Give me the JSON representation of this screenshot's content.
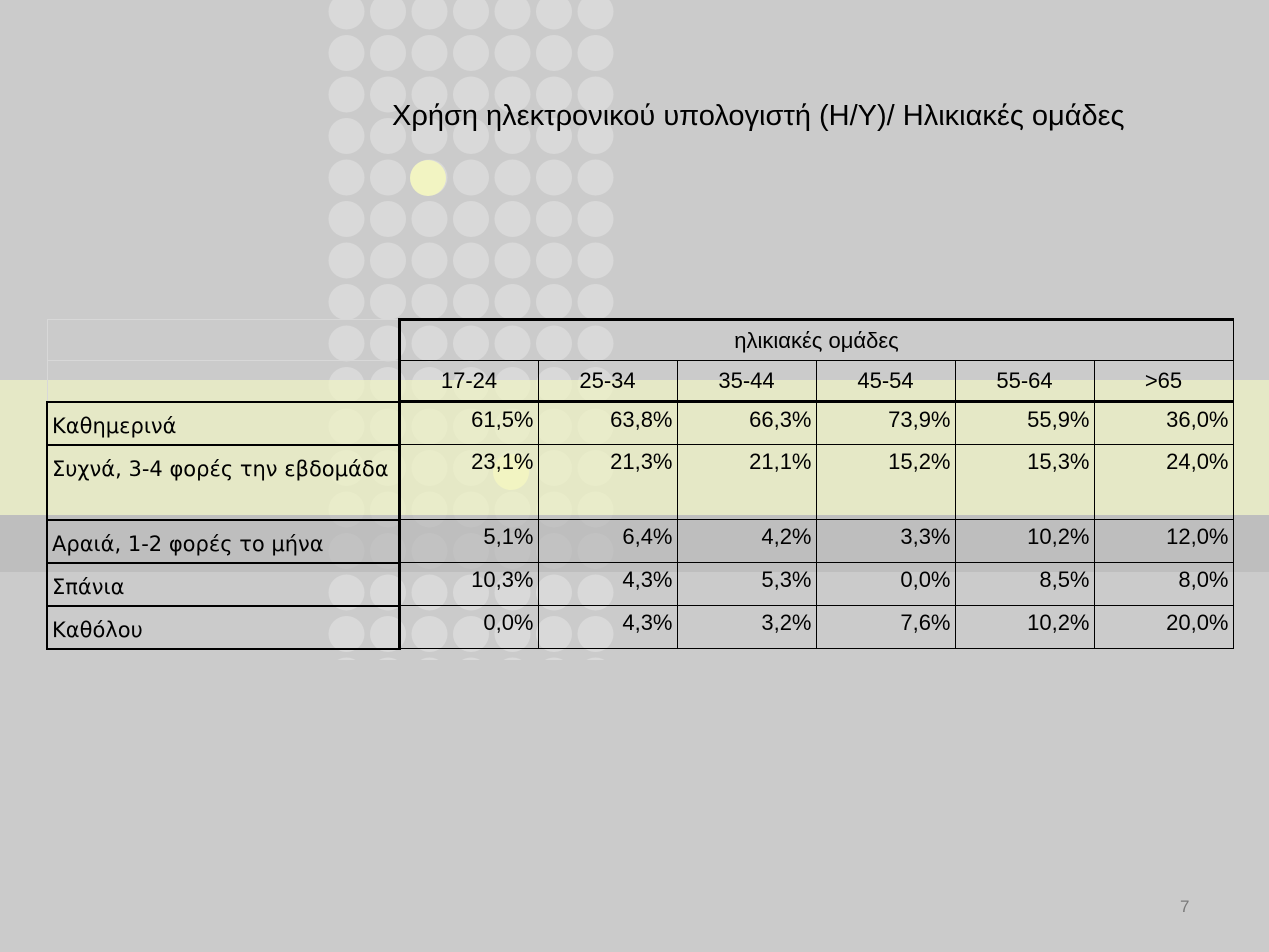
{
  "title": "Χρήση ηλεκτρονικού υπολογιστή (Η/Υ)/ Ηλικιακές ομάδες",
  "table": {
    "group_header": "ηλικιακές ομάδες",
    "columns": [
      "17-24",
      "25-34",
      "35-44",
      "45-54",
      "55-64",
      ">65"
    ],
    "rows": [
      {
        "label": "Καθημερινά",
        "values": [
          "61,5%",
          "63,8%",
          "66,3%",
          "73,9%",
          "55,9%",
          "36,0%"
        ]
      },
      {
        "label": "Συχνά, 3-4 φορές την εβδομάδα",
        "values": [
          "23,1%",
          "21,3%",
          "21,1%",
          "15,2%",
          "15,3%",
          "24,0%"
        ]
      },
      {
        "label": "Αραιά, 1-2 φορές το μήνα",
        "values": [
          "5,1%",
          "6,4%",
          "4,2%",
          "3,3%",
          "10,2%",
          "12,0%"
        ]
      },
      {
        "label": "Σπάνια",
        "values": [
          "10,3%",
          "4,3%",
          "5,3%",
          "0,0%",
          "8,5%",
          "8,0%"
        ]
      },
      {
        "label": "Καθόλου",
        "values": [
          "0,0%",
          "4,3%",
          "3,2%",
          "7,6%",
          "10,2%",
          "20,0%"
        ]
      }
    ]
  },
  "page_number": "7"
}
